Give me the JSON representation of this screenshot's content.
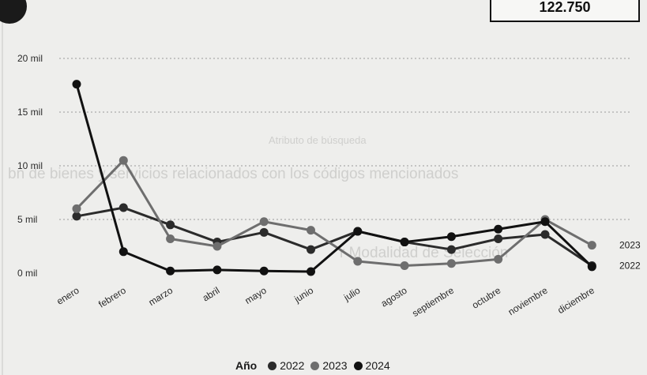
{
  "background_text": [
    "Atributo de búsqueda",
    "bn de bienes y servicios relacionados con los códigos mencionados",
    "r Modalidad de Selección"
  ],
  "kpi": {
    "value": "122.750"
  },
  "chart_data": {
    "type": "line",
    "categories": [
      "enero",
      "febrero",
      "marzo",
      "abril",
      "mayo",
      "junio",
      "julio",
      "agosto",
      "septiembre",
      "octubre",
      "noviembre",
      "diciembre"
    ],
    "ylim": [
      0,
      20000
    ],
    "yticks": [
      0,
      5000,
      10000,
      15000,
      20000
    ],
    "ytick_labels": [
      "0 mil",
      "5 mil",
      "10 mil",
      "15 mil",
      "20 mil"
    ],
    "grid": true,
    "legend": {
      "title": "Año",
      "placement": "bottom"
    },
    "series": [
      {
        "name": "2022",
        "color": "#2b2b2b",
        "end_label": "2022",
        "values": [
          5300,
          6100,
          4500,
          2900,
          3800,
          2200,
          3900,
          2900,
          2200,
          3200,
          3600,
          700
        ]
      },
      {
        "name": "2023",
        "color": "#6e6e6e",
        "end_label": "2023",
        "values": [
          6000,
          10500,
          3200,
          2500,
          4800,
          4000,
          1100,
          700,
          900,
          1300,
          5000,
          2600
        ]
      },
      {
        "name": "2024",
        "color": "#111111",
        "end_label": "",
        "values": [
          17600,
          2000,
          200,
          300,
          200,
          150,
          3900,
          2900,
          3400,
          4100,
          4800,
          600
        ]
      }
    ]
  }
}
